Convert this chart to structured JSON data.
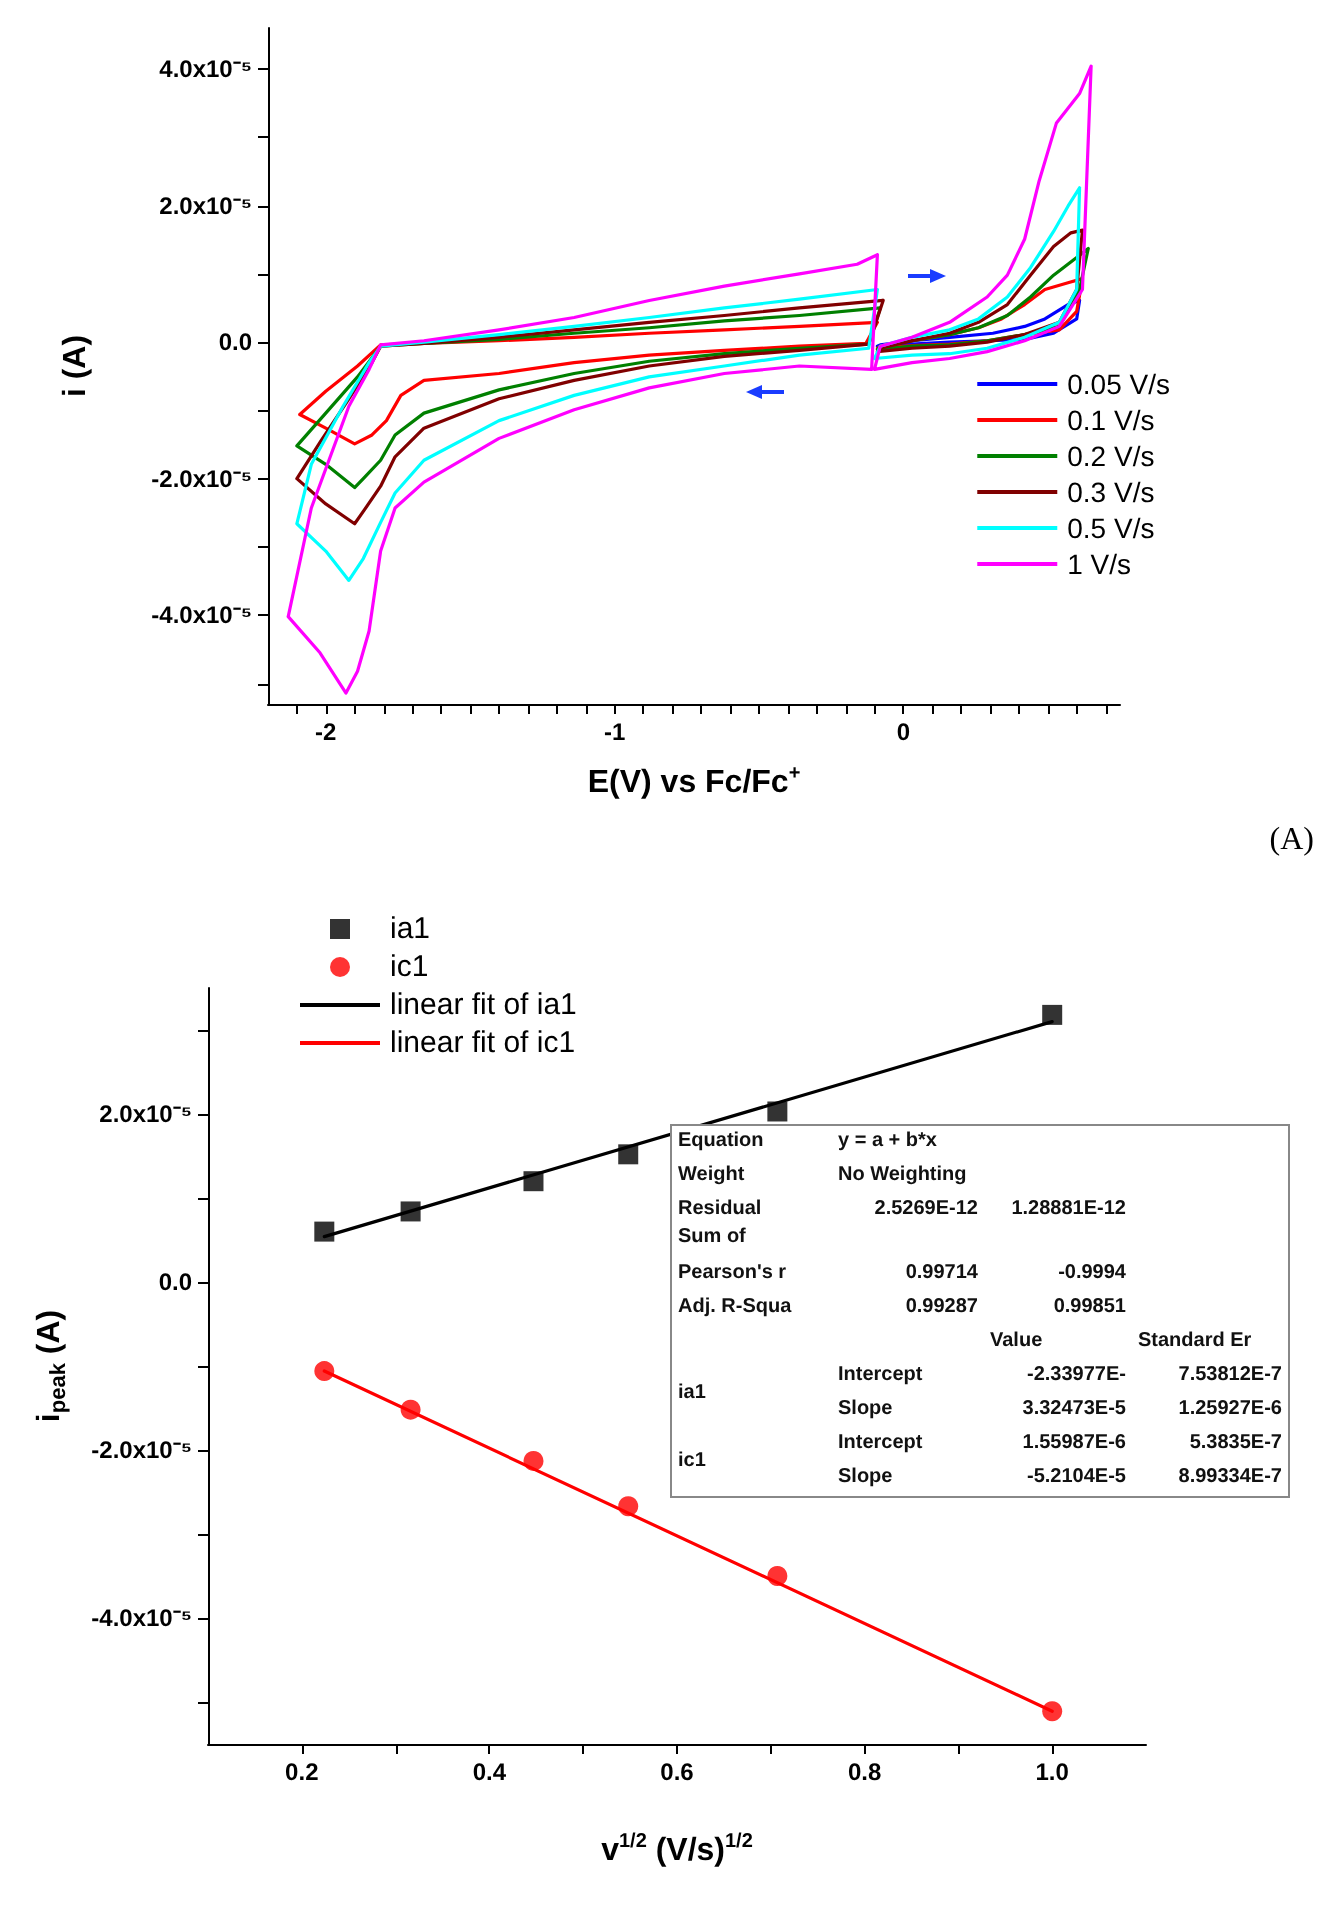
{
  "chart_data": [
    {
      "type": "line",
      "xlabel": "E(V) vs Fc/Fc$^{+}$",
      "ylabel": "i (A)",
      "legend": "bottom right",
      "marker": "none",
      "line_style": "solid",
      "xlim": [
        -2.2,
        0.75
      ],
      "ylim": [
        -5.3e-05,
        4.6e-05
      ],
      "xticks": [
        {
          "value": -2.1,
          "label": null
        },
        {
          "value": -2,
          "label": "-2"
        },
        {
          "value": -1.9,
          "label": null
        },
        {
          "value": -1.8,
          "label": null
        },
        {
          "value": -1.7,
          "label": null
        },
        {
          "value": -1.6,
          "label": null
        },
        {
          "value": -1.5,
          "label": null
        },
        {
          "value": -1.4,
          "label": null
        },
        {
          "value": -1.3,
          "label": null
        },
        {
          "value": -1.2,
          "label": null
        },
        {
          "value": -1.1,
          "label": null
        },
        {
          "value": -1,
          "label": "-1"
        },
        {
          "value": -0.9,
          "label": null
        },
        {
          "value": -0.8,
          "label": null
        },
        {
          "value": -0.7,
          "label": null
        },
        {
          "value": -0.6,
          "label": null
        },
        {
          "value": -0.5,
          "label": null
        },
        {
          "value": -0.4,
          "label": null
        },
        {
          "value": -0.3,
          "label": null
        },
        {
          "value": -0.2,
          "label": null
        },
        {
          "value": -0.1,
          "label": null
        },
        {
          "value": 0,
          "label": "0"
        },
        {
          "value": 0.1,
          "label": null
        },
        {
          "value": 0.2,
          "label": null
        },
        {
          "value": 0.3,
          "label": null
        },
        {
          "value": 0.4,
          "label": null
        },
        {
          "value": 0.5,
          "label": null
        },
        {
          "value": 0.6,
          "label": null
        },
        {
          "value": 0.7,
          "label": null
        }
      ],
      "yticks": [
        {
          "value": -5e-05,
          "label": null
        },
        {
          "value": -4e-05,
          "label": "-4.0x10⁻⁵"
        },
        {
          "value": -3e-05,
          "label": null
        },
        {
          "value": -2e-05,
          "label": "-2.0x10⁻⁵"
        },
        {
          "value": -1e-05,
          "label": null
        },
        {
          "value": 0,
          "label": "0.0"
        },
        {
          "value": 1e-05,
          "label": null
        },
        {
          "value": 2e-05,
          "label": "2.0x10⁻⁵"
        },
        {
          "value": 3e-05,
          "label": null
        },
        {
          "value": 4e-05,
          "label": "4.0x10⁻⁵"
        }
      ],
      "annotations": [
        "(A)"
      ],
      "series": [
        {
          "name": "0.05 V/s",
          "color": "#0000ff",
          "x": [
            -0.09,
            0.03,
            0.16,
            0.29,
            0.42,
            0.52,
            0.6,
            0.61,
            null,
            0.61,
            0.57,
            0.49,
            0.42,
            0.31,
            0.16,
            0.03,
            -0.08,
            -0.09
          ],
          "values": [
            -6e-07,
            -3e-07,
            0.0,
            2e-07,
            4e-07,
            1.3e-06,
            3.4e-06,
            6.1e-06,
            null,
            6.1e-06,
            5.5e-06,
            3.4e-06,
            2.3e-06,
            1.3e-06,
            7e-07,
            2e-07,
            -4e-07,
            -6e-07
          ]
        },
        {
          "name": "0.1 V/s",
          "color": "#ff0000",
          "x": [
            -0.13,
            -0.36,
            -0.62,
            -0.88,
            -1.14,
            -1.4,
            -1.66,
            -1.74,
            -1.79,
            -1.84,
            -1.9,
            -2.0,
            -2.09,
            null,
            -2.09,
            -2.0,
            -1.89,
            -1.81,
            -1.66,
            -1.4,
            -1.14,
            -0.88,
            -0.62,
            -0.36,
            -0.09,
            null,
            -0.09,
            -0.13,
            null,
            -0.09,
            0.03,
            0.16,
            0.29,
            0.42,
            0.54,
            0.6,
            0.62,
            null,
            0.62,
            0.57,
            0.49,
            0.42,
            0.34,
            0.26,
            0.16,
            0.03,
            -0.08,
            -0.09
          ],
          "values": [
            -2e-07,
            -6e-07,
            -1.2e-06,
            -1.9e-06,
            -3e-06,
            -4.6e-06,
            -5.6e-06,
            -7.8e-06,
            -1.15e-05,
            -1.36e-05,
            -1.49e-05,
            -1.26e-05,
            -1.06e-05,
            null,
            -1.06e-05,
            -7.2e-06,
            -3.5e-06,
            -4e-07,
            -2e-07,
            2e-07,
            7e-07,
            1.3e-06,
            1.8e-06,
            2.3e-06,
            2.9e-06,
            null,
            2.9e-06,
            -2e-07,
            null,
            -9e-07,
            -5e-07,
            -3e-07,
            2e-07,
            1.1e-06,
            1.8e-06,
            4.5e-06,
            9.3e-06,
            null,
            9.3e-06,
            8.7e-06,
            7.7e-06,
            5.5e-06,
            3.4e-06,
            2.1e-06,
            1.1e-06,
            2e-07,
            -6e-07,
            -9e-07
          ]
        },
        {
          "name": "0.2 V/s",
          "color": "#008000",
          "x": [
            -0.12,
            -0.36,
            -0.62,
            -0.88,
            -1.14,
            -1.4,
            -1.66,
            -1.76,
            -1.81,
            -1.87,
            -1.9,
            -2.0,
            -2.1,
            null,
            -2.1,
            -2.0,
            -1.89,
            -1.81,
            -1.66,
            -1.4,
            -1.14,
            -0.88,
            -0.62,
            -0.36,
            -0.08,
            null,
            -0.08,
            -0.12,
            null,
            -0.09,
            0.03,
            0.16,
            0.29,
            0.42,
            0.54,
            0.61,
            0.64,
            null,
            0.64,
            0.6,
            0.52,
            0.44,
            0.36,
            0.26,
            0.16,
            0.03,
            -0.08,
            -0.09
          ],
          "values": [
            -3e-07,
            -9e-07,
            -1.7e-06,
            -2.8e-06,
            -4.6e-06,
            -7e-06,
            -1.04e-05,
            -1.36e-05,
            -1.73e-05,
            -2e-05,
            -2.13e-05,
            -1.79e-05,
            -1.52e-05,
            null,
            -1.52e-05,
            -1.04e-05,
            -5.1e-06,
            -6e-07,
            -2e-07,
            4e-07,
            1.3e-06,
            2.1e-06,
            3.1e-06,
            3.9e-06,
            5e-06,
            null,
            5e-06,
            -3e-07,
            null,
            -1.1e-06,
            -6e-07,
            -4e-07,
            2e-07,
            1.1e-06,
            2.3e-06,
            7.7e-06,
            1.37e-05,
            null,
            1.37e-05,
            1.24e-05,
            9.8e-06,
            6.6e-06,
            3.9e-06,
            2.1e-06,
            1.1e-06,
            2e-07,
            -6e-07,
            -1.1e-06
          ]
        },
        {
          "name": "0.3 V/s",
          "color": "#800000",
          "x": [
            -0.12,
            -0.36,
            -0.62,
            -0.88,
            -1.14,
            -1.4,
            -1.66,
            -1.76,
            -1.81,
            -1.87,
            -1.9,
            -2.0,
            -2.1,
            null,
            -2.1,
            -2.02,
            -1.92,
            -1.84,
            -1.81,
            -1.66,
            -1.4,
            -1.14,
            -0.88,
            -0.62,
            -0.36,
            -0.07,
            null,
            -0.07,
            -0.12,
            null,
            -0.09,
            0.03,
            0.16,
            0.29,
            0.42,
            0.54,
            0.6,
            0.62,
            null,
            0.62,
            0.58,
            0.52,
            0.44,
            0.36,
            0.26,
            0.16,
            0.03,
            -0.08,
            -0.09
          ],
          "values": [
            -3e-07,
            -1.2e-06,
            -2.1e-06,
            -3.5e-06,
            -5.6e-06,
            -8.3e-06,
            -1.26e-05,
            -1.68e-05,
            -2.11e-05,
            -2.48e-05,
            -2.66e-05,
            -2.37e-05,
            -2e-05,
            null,
            -2e-05,
            -1.47e-05,
            -8.3e-06,
            -3e-06,
            -6e-07,
            -2e-07,
            7e-07,
            1.8e-06,
            2.9e-06,
            3.9e-06,
            5e-06,
            6.1e-06,
            null,
            6.1e-06,
            -3e-07,
            null,
            -1.4e-06,
            -9e-07,
            -6e-07,
            0.0,
            1.1e-06,
            2.9e-06,
            7.7e-06,
            1.64e-05,
            null,
            1.64e-05,
            1.6e-05,
            1.4e-05,
            9.8e-06,
            5.5e-06,
            2.9e-06,
            1.3e-06,
            2e-07,
            -9e-07,
            -1.4e-06
          ]
        },
        {
          "name": "0.5 V/s",
          "color": "#00ffff",
          "x": [
            -0.12,
            -0.36,
            -0.62,
            -0.88,
            -1.14,
            -1.4,
            -1.66,
            -1.76,
            -1.81,
            -1.87,
            -1.92,
            -2.0,
            -2.1,
            null,
            -2.1,
            -2.05,
            -1.94,
            -1.85,
            -1.81,
            -1.66,
            -1.4,
            -1.14,
            -0.88,
            -0.62,
            -0.36,
            -0.09,
            null,
            -0.09,
            -0.12,
            null,
            -0.1,
            0.03,
            0.16,
            0.29,
            0.42,
            0.54,
            0.6,
            0.61,
            null,
            0.61,
            0.57,
            0.52,
            0.44,
            0.36,
            0.26,
            0.16,
            0.03,
            -0.08,
            -0.1
          ],
          "values": [
            -9e-07,
            -1.9e-06,
            -3.5e-06,
            -5.1e-06,
            -7.8e-06,
            -1.15e-05,
            -1.73e-05,
            -2.21e-05,
            -2.64e-05,
            -3.17e-05,
            -3.49e-05,
            -3.06e-05,
            -2.66e-05,
            null,
            -2.66e-05,
            -1.79e-05,
            -9.4e-06,
            -3e-06,
            -6e-07,
            0.0,
            1.1e-06,
            2.3e-06,
            3.6e-06,
            5e-06,
            6.3e-06,
            7.7e-06,
            null,
            7.7e-06,
            -9e-07,
            null,
            -2.4e-06,
            -1.9e-06,
            -1.7e-06,
            -9e-07,
            7e-07,
            2.9e-06,
            7.7e-06,
            2.26e-05,
            null,
            2.26e-05,
            1.99e-05,
            1.62e-05,
            1.09e-05,
            6.6e-06,
            3.4e-06,
            1.8e-06,
            7e-07,
            -6e-07,
            -2.4e-06
          ]
        },
        {
          "name": "1 V/s",
          "color": "#ff00ff",
          "x": [
            -0.11,
            -0.36,
            -0.62,
            -0.88,
            -1.14,
            -1.4,
            -1.66,
            -1.76,
            -1.81,
            -1.85,
            -1.89,
            -1.93,
            -2.02,
            -2.13,
            null,
            -2.13,
            -2.05,
            -1.92,
            -1.85,
            -1.81,
            -1.66,
            -1.4,
            -1.14,
            -0.88,
            -0.62,
            -0.36,
            -0.16,
            -0.09,
            null,
            -0.09,
            -0.11,
            null,
            -0.1,
            0.03,
            0.16,
            0.29,
            0.42,
            0.54,
            0.62,
            0.65,
            null,
            0.65,
            0.61,
            0.53,
            0.47,
            0.42,
            0.36,
            0.29,
            0.16,
            0.03,
            -0.08,
            -0.1
          ],
          "values": [
            -4e-06,
            -3.5e-06,
            -4.6e-06,
            -6.7e-06,
            -9.9e-06,
            -1.41e-05,
            -2.05e-05,
            -2.43e-05,
            -3.06e-05,
            -4.23e-05,
            -4.82e-05,
            -5.14e-05,
            -4.55e-05,
            -4.02e-05,
            null,
            -4.02e-05,
            -2.43e-05,
            -9.4e-06,
            -4e-06,
            -4e-07,
            2e-07,
            1.8e-06,
            3.6e-06,
            6.1e-06,
            8.2e-06,
            1e-05,
            1.14e-05,
            1.28e-05,
            null,
            1.28e-05,
            -4e-06,
            null,
            -4e-06,
            -3e-06,
            -2.4e-06,
            -1.4e-06,
            2e-07,
            2.3e-06,
            7.7e-06,
            4.04e-05,
            null,
            4.04e-05,
            3.64e-05,
            3.21e-05,
            2.36e-05,
            1.51e-05,
            9.8e-06,
            6.6e-06,
            2.9e-06,
            7e-07,
            -6e-07,
            -4e-06
          ]
        }
      ]
    },
    {
      "type": "scatter",
      "xlabel": "v$^{1/2}$ (V/s)$^{1/2}$",
      "ylabel": "i$_{peak}$ (A)",
      "legend": "top left",
      "xlim": [
        0.1,
        1.1
      ],
      "ylim": [
        -5.5e-05,
        3.5e-05
      ],
      "xticks": [
        {
          "value": 0.2,
          "label": "0.2"
        },
        {
          "value": 0.3,
          "label": null
        },
        {
          "value": 0.4,
          "label": "0.4"
        },
        {
          "value": 0.5,
          "label": null
        },
        {
          "value": 0.6,
          "label": "0.6"
        },
        {
          "value": 0.7,
          "label": null
        },
        {
          "value": 0.8,
          "label": "0.8"
        },
        {
          "value": 0.9,
          "label": null
        },
        {
          "value": 1,
          "label": "1.0"
        }
      ],
      "yticks": [
        {
          "value": -5e-05,
          "label": null
        },
        {
          "value": -4e-05,
          "label": "-4.0x10⁻⁵"
        },
        {
          "value": -3e-05,
          "label": null
        },
        {
          "value": -2e-05,
          "label": "-2.0x10⁻⁵"
        },
        {
          "value": -1e-05,
          "label": null
        },
        {
          "value": 0,
          "label": "0.0"
        },
        {
          "value": 1e-05,
          "label": null
        },
        {
          "value": 2e-05,
          "label": "2.0x10⁻⁵"
        },
        {
          "value": 3e-05,
          "label": null
        }
      ],
      "x": [
        0.224,
        0.316,
        0.447,
        0.548,
        0.707,
        1.0
      ],
      "annotations": [
        "Equation",
        "y = a + b*x",
        "Weight",
        "No Weighting",
        "Residual Sum of",
        "2.5269E-12",
        "1.28881E-12",
        "Pearson's r",
        "0.99714",
        "-0.9994",
        "Adj. R-Squa",
        "0.99287",
        "0.99851",
        "Value",
        "Standard Er",
        "ia1",
        "Intercept",
        "-2.33977E-",
        "7.53812E-7",
        "Slope",
        "3.32473E-5",
        "1.25927E-6",
        "ic1",
        "Intercept",
        "1.55987E-6",
        "5.3835E-7",
        "Slope",
        "-5.2104E-5",
        "8.99334E-7"
      ],
      "series": [
        {
          "name": "ia1",
          "color": "#000000",
          "marker": "square",
          "values": [
            6e-06,
            8.4e-06,
            1.2e-05,
            1.52e-05,
            2.03e-05,
            3.18e-05
          ]
        },
        {
          "name": "ic1",
          "color": "#ff0000",
          "marker": "circle",
          "values": [
            -1.06e-05,
            -1.52e-05,
            -2.13e-05,
            -2.67e-05,
            -3.5e-05,
            -5.11e-05
          ]
        },
        {
          "name": "linear fit of ia1",
          "type": "line",
          "color": "#000000",
          "marker": "none",
          "line_style": "solid",
          "x": [
            0.224,
            1.0
          ],
          "values": [
            5.4e-06,
            3.1e-05
          ]
        },
        {
          "name": "linear fit of ic1",
          "type": "line",
          "color": "#ff0000",
          "marker": "none",
          "line_style": "solid",
          "x": [
            0.224,
            1.0
          ],
          "values": [
            -1.06e-05,
            -5.11e-05
          ]
        }
      ]
    }
  ]
}
